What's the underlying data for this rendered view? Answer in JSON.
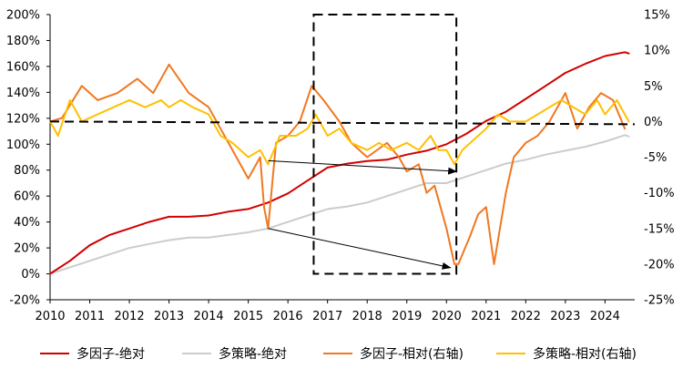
{
  "chart_data": {
    "type": "line",
    "title": "",
    "x": [
      2010,
      2011,
      2012,
      2013,
      2014,
      2015,
      2016,
      2017,
      2018,
      2019,
      2020,
      2021,
      2022,
      2023,
      2024
    ],
    "x_tick_labels": [
      "2010",
      "2011",
      "2012",
      "2013",
      "2014",
      "2015",
      "2016",
      "2017",
      "2018",
      "2019",
      "2020",
      "2021",
      "2022",
      "2023",
      "2024"
    ],
    "y_left": {
      "ylim": [
        -20,
        200
      ],
      "ticks": [
        -20,
        0,
        20,
        40,
        60,
        80,
        100,
        120,
        140,
        160,
        180,
        200
      ],
      "labels": [
        "-20%",
        "0%",
        "20%",
        "40%",
        "60%",
        "80%",
        "100%",
        "120%",
        "140%",
        "160%",
        "180%",
        "200%"
      ]
    },
    "y_right": {
      "ylim": [
        -25,
        15
      ],
      "ticks": [
        -25,
        -20,
        -15,
        -10,
        -5,
        0,
        5,
        10,
        15
      ],
      "labels": [
        "-25%",
        "-20%",
        "-15%",
        "-10%",
        "-5%",
        "0%",
        "5%",
        "10%",
        "15%"
      ]
    },
    "series": [
      {
        "name": "多因子-绝对",
        "axis": "left",
        "color": "#d00000",
        "points": [
          [
            2010.0,
            0
          ],
          [
            2010.5,
            10
          ],
          [
            2011.0,
            22
          ],
          [
            2011.5,
            30
          ],
          [
            2012.0,
            35
          ],
          [
            2012.5,
            40
          ],
          [
            2013.0,
            44
          ],
          [
            2013.5,
            44
          ],
          [
            2014.0,
            45
          ],
          [
            2014.5,
            48
          ],
          [
            2015.0,
            50
          ],
          [
            2015.5,
            55
          ],
          [
            2016.0,
            62
          ],
          [
            2016.5,
            72
          ],
          [
            2017.0,
            82
          ],
          [
            2017.5,
            85
          ],
          [
            2018.0,
            87
          ],
          [
            2018.5,
            88
          ],
          [
            2019.0,
            92
          ],
          [
            2019.5,
            95
          ],
          [
            2020.0,
            100
          ],
          [
            2020.5,
            108
          ],
          [
            2021.0,
            118
          ],
          [
            2021.5,
            125
          ],
          [
            2022.0,
            135
          ],
          [
            2022.5,
            145
          ],
          [
            2023.0,
            155
          ],
          [
            2023.5,
            162
          ],
          [
            2024.0,
            168
          ],
          [
            2024.5,
            171
          ],
          [
            2024.6,
            170
          ]
        ]
      },
      {
        "name": "多策略-绝对",
        "axis": "left",
        "color": "#cccccc",
        "points": [
          [
            2010.0,
            0
          ],
          [
            2010.5,
            5
          ],
          [
            2011.0,
            10
          ],
          [
            2011.5,
            15
          ],
          [
            2012.0,
            20
          ],
          [
            2012.5,
            23
          ],
          [
            2013.0,
            26
          ],
          [
            2013.5,
            28
          ],
          [
            2014.0,
            28
          ],
          [
            2014.5,
            30
          ],
          [
            2015.0,
            32
          ],
          [
            2015.5,
            35
          ],
          [
            2016.0,
            40
          ],
          [
            2016.5,
            45
          ],
          [
            2017.0,
            50
          ],
          [
            2017.5,
            52
          ],
          [
            2018.0,
            55
          ],
          [
            2018.5,
            60
          ],
          [
            2019.0,
            65
          ],
          [
            2019.5,
            70
          ],
          [
            2020.0,
            70
          ],
          [
            2020.5,
            75
          ],
          [
            2021.0,
            80
          ],
          [
            2021.5,
            85
          ],
          [
            2022.0,
            88
          ],
          [
            2022.5,
            92
          ],
          [
            2023.0,
            95
          ],
          [
            2023.5,
            98
          ],
          [
            2024.0,
            102
          ],
          [
            2024.5,
            107
          ],
          [
            2024.6,
            106
          ]
        ]
      },
      {
        "name": "多因子-相对(右轴)",
        "axis": "right",
        "color": "#f07820",
        "points": [
          [
            2010.0,
            0
          ],
          [
            2010.3,
            0.5
          ],
          [
            2010.8,
            5
          ],
          [
            2011.2,
            3
          ],
          [
            2011.7,
            4
          ],
          [
            2012.2,
            6
          ],
          [
            2012.6,
            4
          ],
          [
            2013.0,
            8
          ],
          [
            2013.5,
            4
          ],
          [
            2014.0,
            2
          ],
          [
            2014.3,
            -1
          ],
          [
            2014.7,
            -5
          ],
          [
            2015.0,
            -8
          ],
          [
            2015.3,
            -5
          ],
          [
            2015.4,
            -12
          ],
          [
            2015.5,
            -15
          ],
          [
            2015.7,
            -3
          ],
          [
            2016.0,
            -2
          ],
          [
            2016.3,
            0
          ],
          [
            2016.6,
            5
          ],
          [
            2016.9,
            3
          ],
          [
            2017.3,
            0
          ],
          [
            2017.6,
            -3
          ],
          [
            2018.0,
            -5
          ],
          [
            2018.5,
            -3
          ],
          [
            2018.8,
            -5
          ],
          [
            2019.0,
            -7
          ],
          [
            2019.3,
            -6
          ],
          [
            2019.5,
            -10
          ],
          [
            2019.7,
            -9
          ],
          [
            2020.0,
            -15
          ],
          [
            2020.2,
            -20
          ],
          [
            2020.3,
            -20
          ],
          [
            2020.6,
            -16
          ],
          [
            2020.8,
            -13
          ],
          [
            2021.0,
            -12
          ],
          [
            2021.2,
            -20
          ],
          [
            2021.5,
            -10
          ],
          [
            2021.7,
            -5
          ],
          [
            2022.0,
            -3
          ],
          [
            2022.3,
            -2
          ],
          [
            2022.6,
            0
          ],
          [
            2022.9,
            3
          ],
          [
            2023.0,
            4
          ],
          [
            2023.3,
            -1
          ],
          [
            2023.6,
            2
          ],
          [
            2023.9,
            4
          ],
          [
            2024.2,
            3
          ],
          [
            2024.5,
            -1
          ]
        ]
      },
      {
        "name": "多策略-相对(右轴)",
        "axis": "right",
        "color": "#ffc000",
        "points": [
          [
            2010.0,
            0
          ],
          [
            2010.2,
            -2
          ],
          [
            2010.5,
            3
          ],
          [
            2010.8,
            0
          ],
          [
            2011.2,
            1
          ],
          [
            2011.6,
            2
          ],
          [
            2012.0,
            3
          ],
          [
            2012.4,
            2
          ],
          [
            2012.8,
            3
          ],
          [
            2013.0,
            2
          ],
          [
            2013.3,
            3
          ],
          [
            2013.6,
            2
          ],
          [
            2014.0,
            1
          ],
          [
            2014.3,
            -2
          ],
          [
            2014.6,
            -3
          ],
          [
            2015.0,
            -5
          ],
          [
            2015.3,
            -4
          ],
          [
            2015.5,
            -6
          ],
          [
            2015.8,
            -2
          ],
          [
            2016.2,
            -2
          ],
          [
            2016.5,
            -1
          ],
          [
            2016.7,
            1
          ],
          [
            2017.0,
            -2
          ],
          [
            2017.3,
            -1
          ],
          [
            2017.6,
            -3
          ],
          [
            2018.0,
            -4
          ],
          [
            2018.3,
            -3
          ],
          [
            2018.6,
            -4
          ],
          [
            2019.0,
            -3
          ],
          [
            2019.3,
            -4
          ],
          [
            2019.6,
            -2
          ],
          [
            2019.8,
            -4
          ],
          [
            2020.0,
            -4
          ],
          [
            2020.2,
            -6
          ],
          [
            2020.4,
            -4
          ],
          [
            2020.6,
            -3
          ],
          [
            2021.0,
            -1
          ],
          [
            2021.3,
            1
          ],
          [
            2021.6,
            0
          ],
          [
            2022.0,
            0
          ],
          [
            2022.3,
            1
          ],
          [
            2022.6,
            2
          ],
          [
            2022.9,
            3
          ],
          [
            2023.2,
            2
          ],
          [
            2023.5,
            1
          ],
          [
            2023.8,
            3
          ],
          [
            2024.0,
            1
          ],
          [
            2024.3,
            3
          ],
          [
            2024.5,
            1
          ],
          [
            2024.6,
            0
          ]
        ]
      }
    ],
    "annotations": {
      "dashed_box": {
        "x_range": [
          2016.65,
          2020.25
        ],
        "y_range_left": [
          0,
          200
        ]
      },
      "dashed_baseline_right": 0,
      "arrows": [
        {
          "from": [
            2015.5,
            -5.5
          ],
          "to": [
            2020.25,
            -7.0
          ]
        },
        {
          "from": [
            2015.5,
            -15.0
          ],
          "to": [
            2020.1,
            -20.5
          ]
        }
      ]
    },
    "legend": {
      "placement": "bottom"
    }
  }
}
